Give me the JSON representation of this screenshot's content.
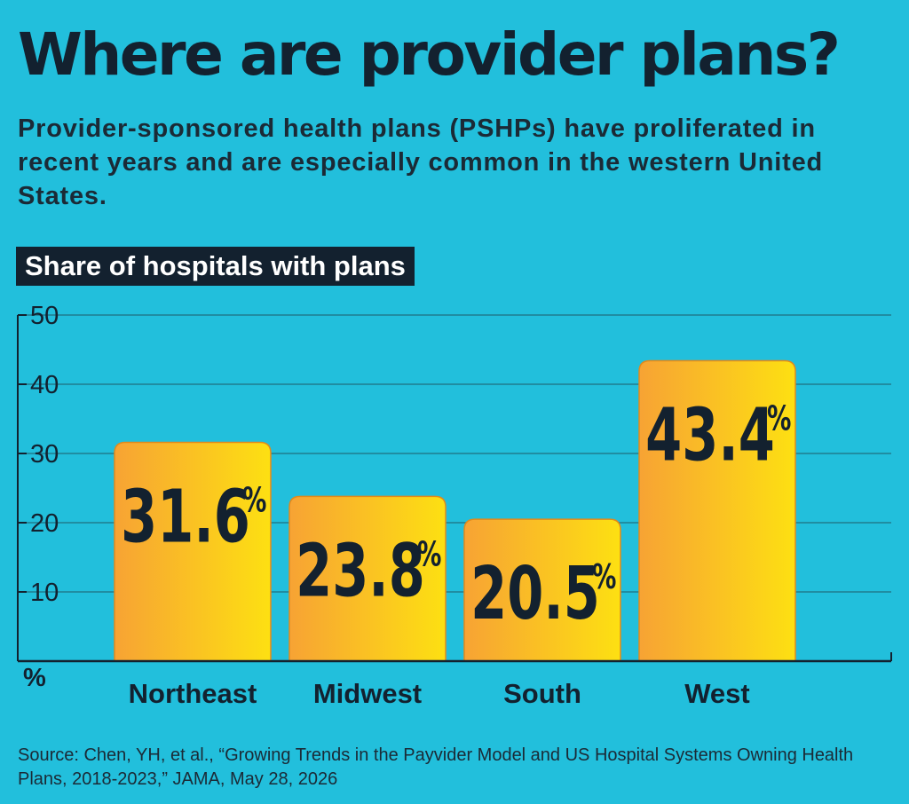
{
  "header": {
    "title": "Where are provider plans?",
    "subtitle": "Provider-sponsored health plans (PSHPs) have proliferated in recent years and are especially common in the western United States."
  },
  "chart_label": "Share of hospitals with plans",
  "chart_data": {
    "type": "bar",
    "categories": [
      "Northeast",
      "Midwest",
      "South",
      "West"
    ],
    "values": [
      31.6,
      23.8,
      20.5,
      43.4
    ],
    "value_labels": [
      "31.6",
      "23.8",
      "20.5",
      "43.4"
    ],
    "value_suffix": "%",
    "title": "Share of hospitals with plans",
    "xlabel": "",
    "ylabel": "%",
    "ylim": [
      0,
      50
    ],
    "yticks": [
      10,
      20,
      30,
      40,
      50
    ],
    "grid": true,
    "legend": "none",
    "colors": {
      "bar_gradient_start": "#f7a334",
      "bar_gradient_end": "#fde012",
      "bar_outline": "#e08a1d",
      "grid": "#1f6f80",
      "axis": "#13212f",
      "background": "#22bfdc"
    }
  },
  "footer": {
    "source": "Source: Chen, YH, et al., “Growing Trends in the Payvider Model and US Hospital Systems Owning Health Plans, 2018-2023,” JAMA, May 28, 2026"
  }
}
